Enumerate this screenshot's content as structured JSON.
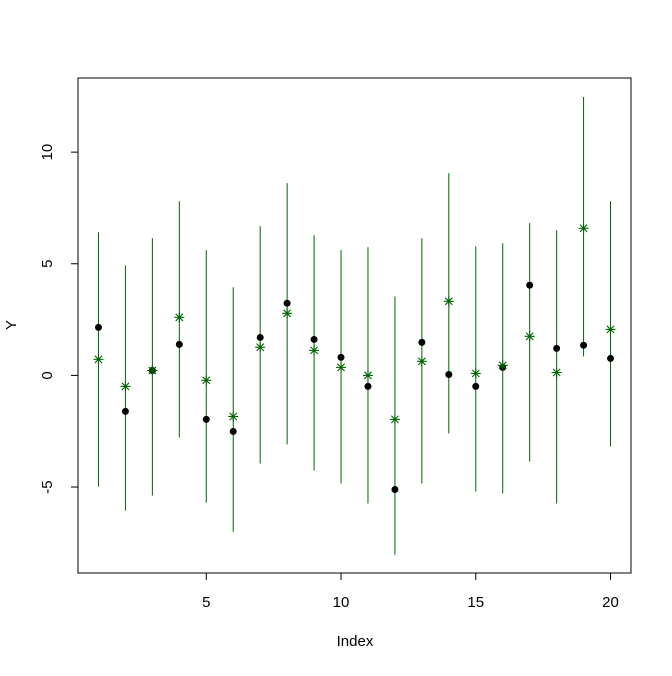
{
  "chart_data": {
    "type": "scatter",
    "x_label": "Index",
    "y_label": "Y",
    "x": [
      1,
      2,
      3,
      4,
      5,
      6,
      7,
      8,
      9,
      10,
      11,
      12,
      13,
      14,
      15,
      16,
      17,
      18,
      19,
      20
    ],
    "xlim": [
      0.24,
      20.76
    ],
    "xticks": [
      5,
      10,
      15,
      20
    ],
    "ylim": [
      -8.85,
      13.32
    ],
    "yticks": [
      -5,
      0,
      5,
      10
    ],
    "series": [
      {
        "color": "#000000",
        "marker": "dot",
        "values": [
          2.15,
          -1.61,
          0.22,
          1.39,
          -1.97,
          -2.51,
          1.7,
          3.23,
          1.61,
          0.81,
          -0.49,
          -5.11,
          1.48,
          0.04,
          -0.49,
          0.36,
          4.04,
          1.21,
          1.35,
          0.76
        ]
      },
      {
        "color": "#006400",
        "marker": "asterisk",
        "values": [
          0.72,
          -0.49,
          0.22,
          2.6,
          -0.22,
          -1.84,
          1.26,
          2.78,
          1.12,
          0.36,
          0,
          -1.97,
          0.63,
          3.32,
          0.09,
          0.45,
          1.75,
          0.13,
          6.59,
          2.06
        ],
        "lower": [
          -4.98,
          -6.05,
          -5.38,
          -2.78,
          -5.7,
          -7.0,
          -3.95,
          -3.09,
          -4.26,
          -4.84,
          -5.74,
          -8.03,
          -4.84,
          -2.6,
          -5.2,
          -5.29,
          -3.86,
          -5.74,
          0.85,
          -3.18
        ],
        "upper": [
          6.41,
          4.93,
          6.14,
          7.8,
          5.61,
          3.95,
          6.68,
          8.61,
          6.28,
          5.61,
          5.74,
          3.54,
          6.14,
          9.06,
          5.78,
          5.92,
          6.82,
          6.5,
          12.47,
          7.8
        ]
      }
    ]
  }
}
